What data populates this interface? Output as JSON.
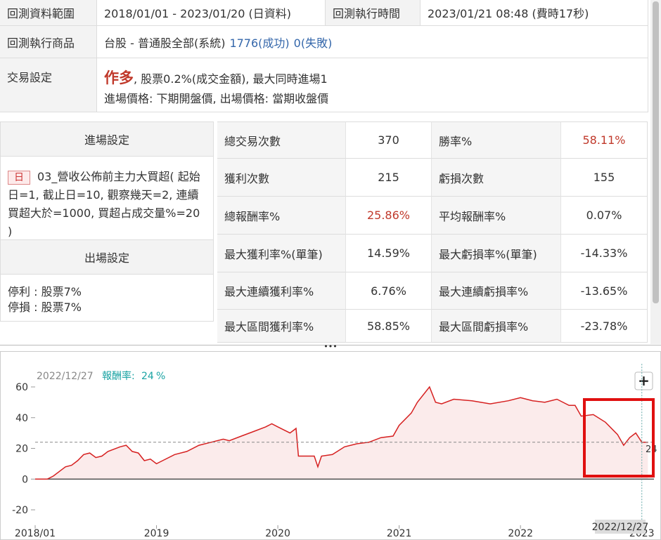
{
  "summary": {
    "range_label": "回測資料範圍",
    "range_value": "2018/01/01 - 2023/01/20 (日資料)",
    "run_time_label": "回測執行時間",
    "run_time_value": "2023/01/21 08:48 (費時17秒)",
    "product_label": "回測執行商品",
    "product_value": "台股 - 普通股全部(系統)",
    "success": "1776(成功)",
    "fail": "0(失敗)",
    "trade_label": "交易設定",
    "direction": "作多",
    "trade_detail": ", 股票0.2%(成交金額), 最大同時進場1",
    "price_detail": "進場價格: 下期開盤價, 出場價格: 當期收盤價"
  },
  "settings": {
    "entry_title": "進場設定",
    "entry_tag": "日",
    "entry_rule": "03_營收公佈前主力大買超( 起始日=1, 截止日=10, 觀察幾天=2, 連續買超大於=1000, 買超占成交量%=20 )",
    "exit_title": "出場設定",
    "exit_rules": [
      "停利 : 股票7%",
      "停損 : 股票7%"
    ]
  },
  "stats": {
    "rows": [
      [
        "總交易次數",
        "370",
        "勝率%",
        "58.11%"
      ],
      [
        "獲利次數",
        "215",
        "虧損次數",
        "155"
      ],
      [
        "總報酬率%",
        "25.86%",
        "平均報酬率%",
        "0.07%"
      ],
      [
        "最大獲利率%(單筆)",
        "14.59%",
        "最大虧損率%(單筆)",
        "-14.33%"
      ],
      [
        "最大連續獲利率%",
        "6.76%",
        "最大連續虧損率%",
        "-13.65%"
      ],
      [
        "最大區間獲利率%",
        "58.85%",
        "最大區間虧損率%",
        "-23.78%"
      ]
    ]
  },
  "controls": {
    "divider": "•••",
    "zoom": "+"
  },
  "chart_data": {
    "type": "line",
    "header_date": "2022/12/27",
    "header_label": "報酬率:",
    "header_value": 24,
    "header_unit": "%",
    "x": [
      2018.0,
      2018.1,
      2018.15,
      2018.2,
      2018.25,
      2018.3,
      2018.35,
      2018.4,
      2018.45,
      2018.5,
      2018.55,
      2018.6,
      2018.7,
      2018.75,
      2018.8,
      2018.85,
      2018.9,
      2018.95,
      2019.0,
      2019.05,
      2019.15,
      2019.25,
      2019.35,
      2019.45,
      2019.55,
      2019.6,
      2019.7,
      2019.8,
      2019.9,
      2019.95,
      2020.0,
      2020.1,
      2020.15,
      2020.17,
      2020.3,
      2020.33,
      2020.36,
      2020.45,
      2020.55,
      2020.65,
      2020.75,
      2020.85,
      2020.95,
      2021.0,
      2021.1,
      2021.15,
      2021.25,
      2021.3,
      2021.35,
      2021.45,
      2021.6,
      2021.75,
      2021.9,
      2022.0,
      2022.1,
      2022.2,
      2022.3,
      2022.4,
      2022.45,
      2022.5,
      2022.6,
      2022.7,
      2022.8,
      2022.85,
      2022.9,
      2022.95,
      2023.0,
      2023.05
    ],
    "series": [
      {
        "color": "#d62020",
        "values": [
          0,
          0,
          2,
          5,
          8,
          9,
          12,
          16,
          17,
          14,
          15,
          18,
          21,
          22,
          18,
          17,
          12,
          13,
          10,
          12,
          16,
          18,
          22,
          24,
          26,
          25,
          28,
          31,
          34,
          36,
          34,
          30,
          33,
          15,
          15,
          8,
          15,
          16,
          21,
          23,
          24,
          27,
          28,
          35,
          43,
          50,
          60,
          50,
          49,
          52,
          51,
          49,
          51,
          53,
          51,
          50,
          52,
          48,
          48,
          41,
          42,
          37,
          29,
          22,
          27,
          30,
          24,
          24
        ]
      }
    ],
    "xlim": [
      2018,
      2023.1
    ],
    "ylim": [
      -30,
      75
    ],
    "xticks": [
      {
        "value": 2018,
        "label": "2018/01"
      },
      2019,
      2020,
      2021,
      2022,
      2023
    ],
    "yticks": [
      -20,
      0,
      20,
      40,
      60
    ]
  }
}
